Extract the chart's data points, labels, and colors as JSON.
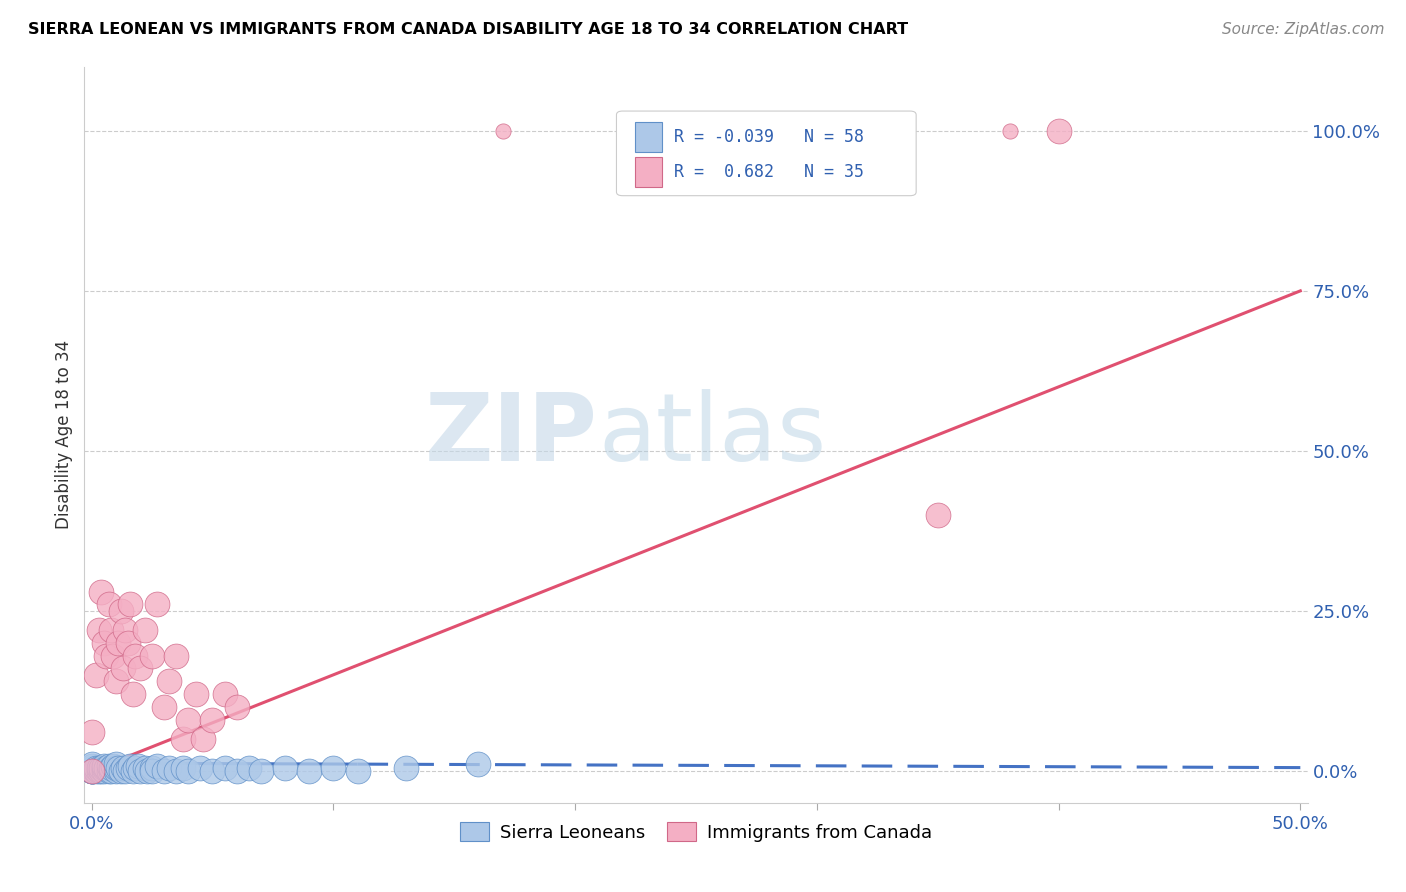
{
  "title": "SIERRA LEONEAN VS IMMIGRANTS FROM CANADA DISABILITY AGE 18 TO 34 CORRELATION CHART",
  "source": "Source: ZipAtlas.com",
  "ylabel": "Disability Age 18 to 34",
  "xlim": [
    -0.003,
    0.503
  ],
  "ylim": [
    -0.05,
    1.1
  ],
  "x_ticks": [
    0.0,
    0.1,
    0.2,
    0.3,
    0.4,
    0.5
  ],
  "x_tick_labels": [
    "0.0%",
    "",
    "",
    "",
    "",
    "50.0%"
  ],
  "y_ticks_right": [
    0.0,
    0.25,
    0.5,
    0.75,
    1.0
  ],
  "y_tick_labels_right": [
    "0.0%",
    "25.0%",
    "50.0%",
    "75.0%",
    "100.0%"
  ],
  "color_blue": "#adc8e8",
  "color_pink": "#f4afc4",
  "line_blue": "#4472c4",
  "line_pink": "#e05070",
  "watermark_zip": "ZIP",
  "watermark_atlas": "atlas",
  "sierra_x": [
    0.0,
    0.0,
    0.0,
    0.0,
    0.0,
    0.0,
    0.0,
    0.0,
    0.002,
    0.002,
    0.003,
    0.003,
    0.004,
    0.004,
    0.005,
    0.005,
    0.005,
    0.006,
    0.007,
    0.007,
    0.008,
    0.008,
    0.009,
    0.01,
    0.01,
    0.01,
    0.011,
    0.012,
    0.013,
    0.014,
    0.015,
    0.016,
    0.017,
    0.018,
    0.019,
    0.02,
    0.022,
    0.023,
    0.025,
    0.025,
    0.027,
    0.03,
    0.032,
    0.035,
    0.038,
    0.04,
    0.045,
    0.05,
    0.055,
    0.06,
    0.065,
    0.07,
    0.08,
    0.09,
    0.1,
    0.11,
    0.13,
    0.16
  ],
  "sierra_y": [
    0.0,
    0.0,
    0.0,
    0.0,
    0.0,
    0.005,
    0.008,
    0.01,
    0.0,
    0.005,
    0.0,
    0.005,
    0.0,
    0.005,
    0.0,
    0.005,
    0.008,
    0.005,
    0.0,
    0.008,
    0.0,
    0.005,
    0.008,
    0.0,
    0.005,
    0.01,
    0.005,
    0.0,
    0.005,
    0.0,
    0.005,
    0.008,
    0.0,
    0.005,
    0.008,
    0.0,
    0.005,
    0.0,
    0.005,
    0.0,
    0.008,
    0.0,
    0.005,
    0.0,
    0.005,
    0.0,
    0.005,
    0.0,
    0.005,
    0.0,
    0.005,
    0.0,
    0.005,
    0.0,
    0.005,
    0.0,
    0.005,
    0.01
  ],
  "canada_x": [
    0.0,
    0.0,
    0.002,
    0.003,
    0.004,
    0.005,
    0.006,
    0.007,
    0.008,
    0.009,
    0.01,
    0.011,
    0.012,
    0.013,
    0.014,
    0.015,
    0.016,
    0.017,
    0.018,
    0.02,
    0.022,
    0.025,
    0.027,
    0.03,
    0.032,
    0.035,
    0.038,
    0.04,
    0.043,
    0.046,
    0.05,
    0.055,
    0.06,
    0.35,
    0.4
  ],
  "canada_y": [
    0.0,
    0.06,
    0.15,
    0.22,
    0.28,
    0.2,
    0.18,
    0.26,
    0.22,
    0.18,
    0.14,
    0.2,
    0.25,
    0.16,
    0.22,
    0.2,
    0.26,
    0.12,
    0.18,
    0.16,
    0.22,
    0.18,
    0.26,
    0.1,
    0.14,
    0.18,
    0.05,
    0.08,
    0.12,
    0.05,
    0.08,
    0.12,
    0.1,
    0.4,
    1.0
  ],
  "canada_line_x": [
    0.0,
    0.5
  ],
  "canada_line_y": [
    0.0,
    0.75
  ],
  "sierra_line_x": [
    0.0,
    0.5
  ],
  "sierra_line_y": [
    0.012,
    0.005
  ]
}
